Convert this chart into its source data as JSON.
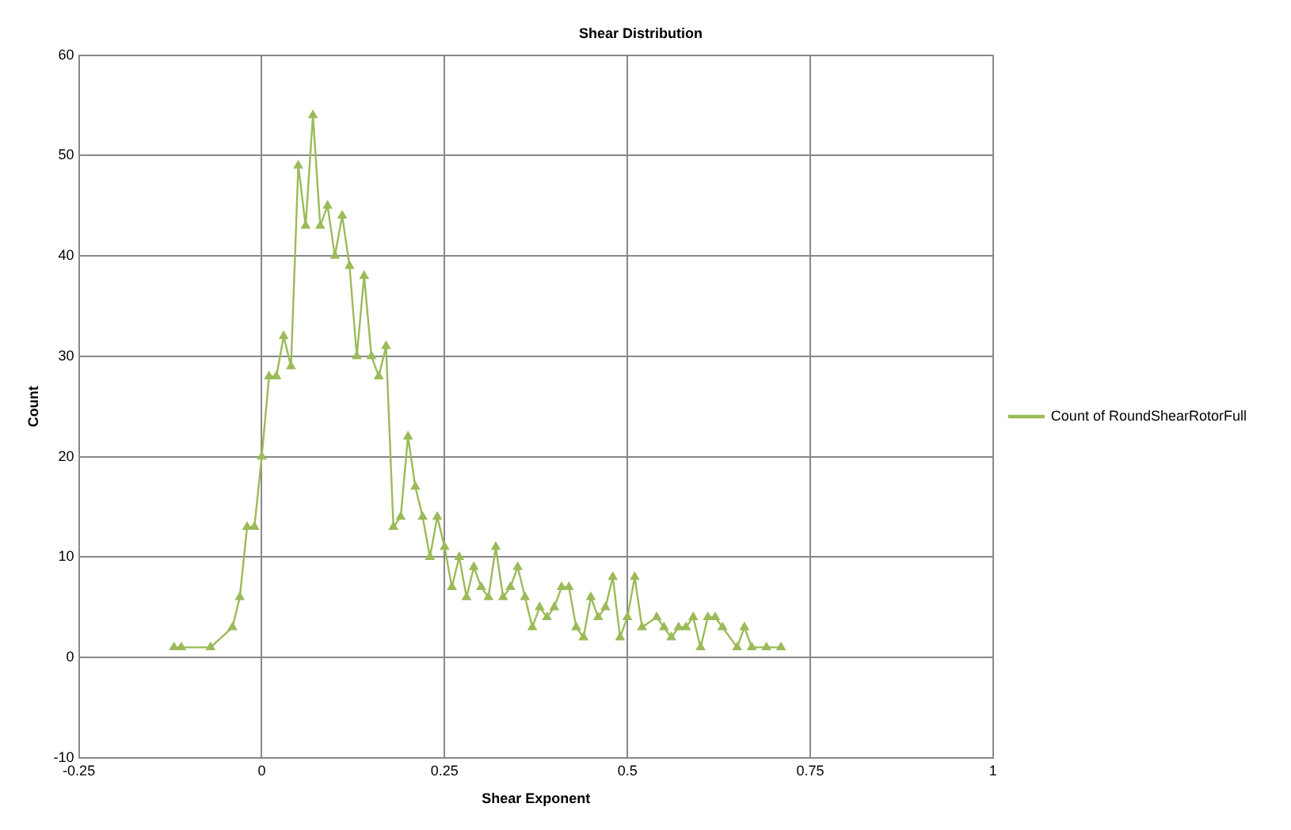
{
  "chart_data": {
    "type": "line",
    "title": "Shear Distribution",
    "xlabel": "Shear Exponent",
    "ylabel": "Count",
    "x": [
      -0.12,
      -0.11,
      -0.07,
      -0.04,
      -0.03,
      -0.02,
      -0.01,
      0,
      0.01,
      0.02,
      0.03,
      0.04,
      0.05,
      0.06,
      0.07,
      0.08,
      0.09,
      0.1,
      0.11,
      0.12,
      0.13,
      0.14,
      0.15,
      0.16,
      0.17,
      0.18,
      0.19,
      0.2,
      0.21,
      0.22,
      0.23,
      0.24,
      0.25,
      0.26,
      0.27,
      0.28,
      0.29,
      0.3,
      0.31,
      0.32,
      0.33,
      0.34,
      0.35,
      0.36,
      0.37,
      0.38,
      0.39,
      0.4,
      0.41,
      0.42,
      0.43,
      0.44,
      0.45,
      0.46,
      0.47,
      0.48,
      0.49,
      0.5,
      0.51,
      0.52,
      0.54,
      0.55,
      0.56,
      0.57,
      0.58,
      0.59,
      0.6,
      0.61,
      0.62,
      0.63,
      0.65,
      0.66,
      0.67,
      0.69,
      0.71
    ],
    "series": [
      {
        "name": "Count of RoundShearRotorFull",
        "color": "#9bbb59",
        "values": [
          1,
          1,
          1,
          3,
          6,
          13,
          13,
          20,
          28,
          28,
          32,
          29,
          49,
          43,
          54,
          43,
          45,
          40,
          44,
          39,
          30,
          38,
          30,
          28,
          31,
          13,
          14,
          22,
          17,
          14,
          10,
          14,
          11,
          7,
          10,
          6,
          9,
          7,
          6,
          11,
          6,
          7,
          9,
          6,
          3,
          5,
          4,
          5,
          7,
          7,
          3,
          2,
          6,
          4,
          5,
          8,
          2,
          4,
          8,
          3,
          4,
          3,
          2,
          3,
          3,
          4,
          1,
          4,
          4,
          3,
          1,
          3,
          1,
          1,
          1
        ]
      }
    ],
    "xlim": [
      -0.25,
      1
    ],
    "xticks": [
      -0.25,
      0,
      0.25,
      0.5,
      0.75,
      1
    ],
    "ylim": [
      -10,
      60
    ],
    "yticks": [
      -10,
      0,
      10,
      20,
      30,
      40,
      50,
      60
    ],
    "grid": true,
    "legend": "right",
    "marker": "triangle",
    "line_style": "solid"
  }
}
